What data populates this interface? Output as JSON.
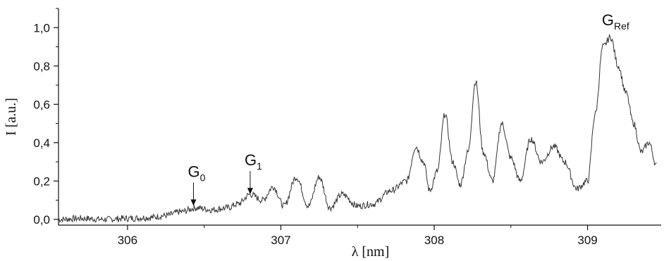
{
  "chart_data": {
    "type": "line",
    "xlabel": "λ [nm]",
    "ylabel": "I [a.u.]",
    "xlim": [
      305.55,
      309.48
    ],
    "ylim": [
      -0.03,
      1.1
    ],
    "x_ticks": [
      306,
      307,
      308,
      309
    ],
    "y_ticks": [
      0.0,
      0.2,
      0.4,
      0.6,
      0.8,
      1.0
    ],
    "x_tick_labels": [
      "306",
      "307",
      "308",
      "309"
    ],
    "y_tick_labels": [
      "0,0",
      "0,2",
      "0,4",
      "0,6",
      "0,8",
      "1,0"
    ],
    "grid": false,
    "legend": "none",
    "line_color": "#333333",
    "series": [
      {
        "x": [
          305.55,
          305.7,
          305.85,
          306.0,
          306.15,
          306.25,
          306.35,
          306.45,
          306.55,
          306.65,
          306.72,
          306.8,
          306.88,
          306.95,
          307.02,
          307.1,
          307.18,
          307.25,
          307.32,
          307.4,
          307.5,
          307.6,
          307.72,
          307.82,
          307.88,
          307.93,
          307.97,
          308.02,
          308.07,
          308.12,
          308.17,
          308.22,
          308.27,
          308.32,
          308.38,
          308.44,
          308.5,
          308.56,
          308.63,
          308.7,
          308.78,
          308.85,
          308.93,
          309.0,
          309.05,
          309.1,
          309.15,
          309.2,
          309.25,
          309.3,
          309.35,
          309.4,
          309.45
        ],
        "y": [
          0.0,
          0.005,
          0.0,
          0.005,
          0.01,
          0.02,
          0.04,
          0.06,
          0.05,
          0.06,
          0.08,
          0.13,
          0.1,
          0.17,
          0.07,
          0.22,
          0.07,
          0.22,
          0.06,
          0.13,
          0.07,
          0.08,
          0.15,
          0.2,
          0.38,
          0.3,
          0.15,
          0.25,
          0.55,
          0.3,
          0.18,
          0.35,
          0.72,
          0.35,
          0.2,
          0.5,
          0.32,
          0.2,
          0.42,
          0.3,
          0.38,
          0.3,
          0.16,
          0.2,
          0.55,
          0.9,
          0.95,
          0.8,
          0.66,
          0.5,
          0.35,
          0.4,
          0.28
        ]
      }
    ],
    "annotations": [
      {
        "base": "G",
        "sub": "0",
        "x": 306.43,
        "y": 0.06
      },
      {
        "base": "G",
        "sub": "1",
        "x": 306.8,
        "y": 0.12
      },
      {
        "base": "G",
        "sub": "Ref",
        "x": 309.13,
        "y": 0.96
      }
    ]
  }
}
